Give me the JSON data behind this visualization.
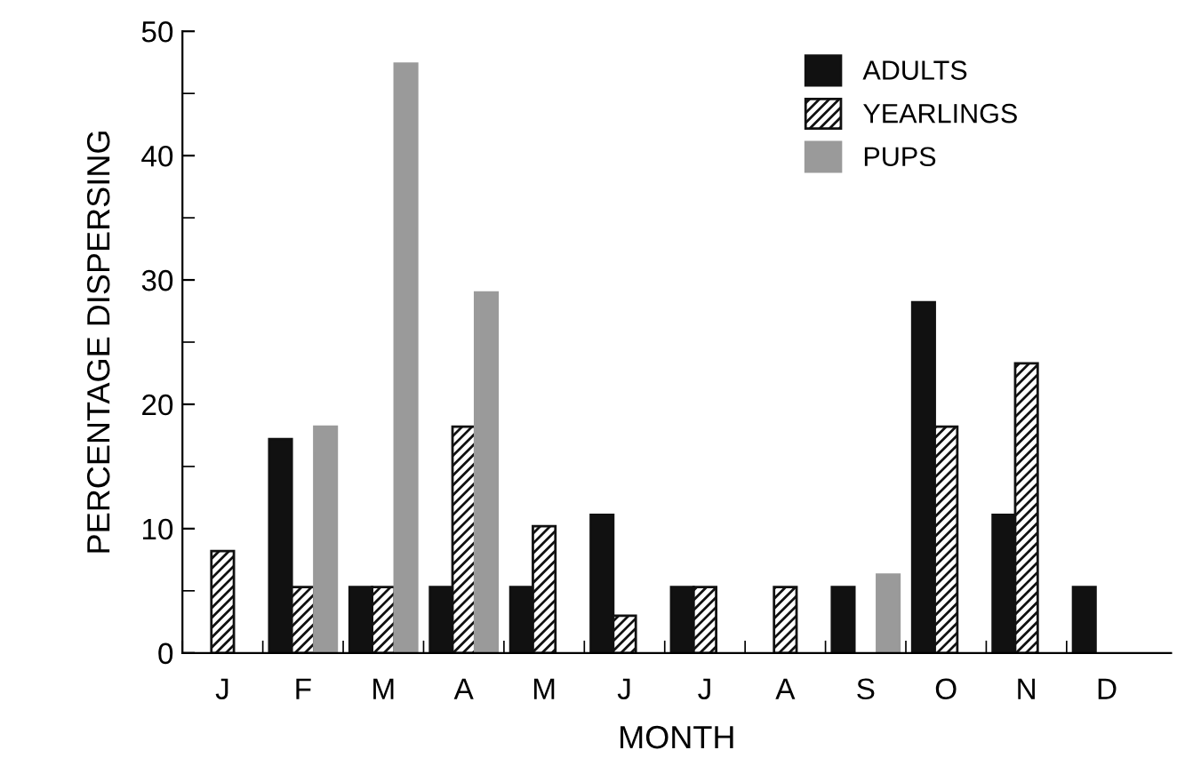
{
  "chart_data": {
    "type": "bar",
    "xlabel": "MONTH",
    "ylabel": "PERCENTAGE DISPERSING",
    "categories": [
      "J",
      "F",
      "M",
      "A",
      "M",
      "J",
      "J",
      "A",
      "S",
      "O",
      "N",
      "D"
    ],
    "series": [
      {
        "name": "ADULTS",
        "color": "#111111",
        "values": [
          null,
          17.2,
          5.3,
          5.3,
          5.3,
          11.1,
          5.3,
          null,
          5.3,
          28.2,
          11.1,
          5.3
        ]
      },
      {
        "name": "YEARLINGS",
        "color": "#111111",
        "values": [
          8.2,
          5.3,
          5.3,
          18.2,
          10.2,
          3,
          5.3,
          5.3,
          null,
          18.2,
          23.3,
          null
        ]
      },
      {
        "name": "PUPS",
        "color": "#9a9a9a",
        "values": [
          null,
          18.2,
          47.4,
          29,
          null,
          null,
          null,
          null,
          6.3,
          null,
          null,
          null
        ]
      }
    ],
    "ylim": [
      0,
      50
    ],
    "yticks": [
      0,
      10,
      20,
      30,
      40,
      50
    ],
    "grid": false,
    "legend": "top right"
  }
}
